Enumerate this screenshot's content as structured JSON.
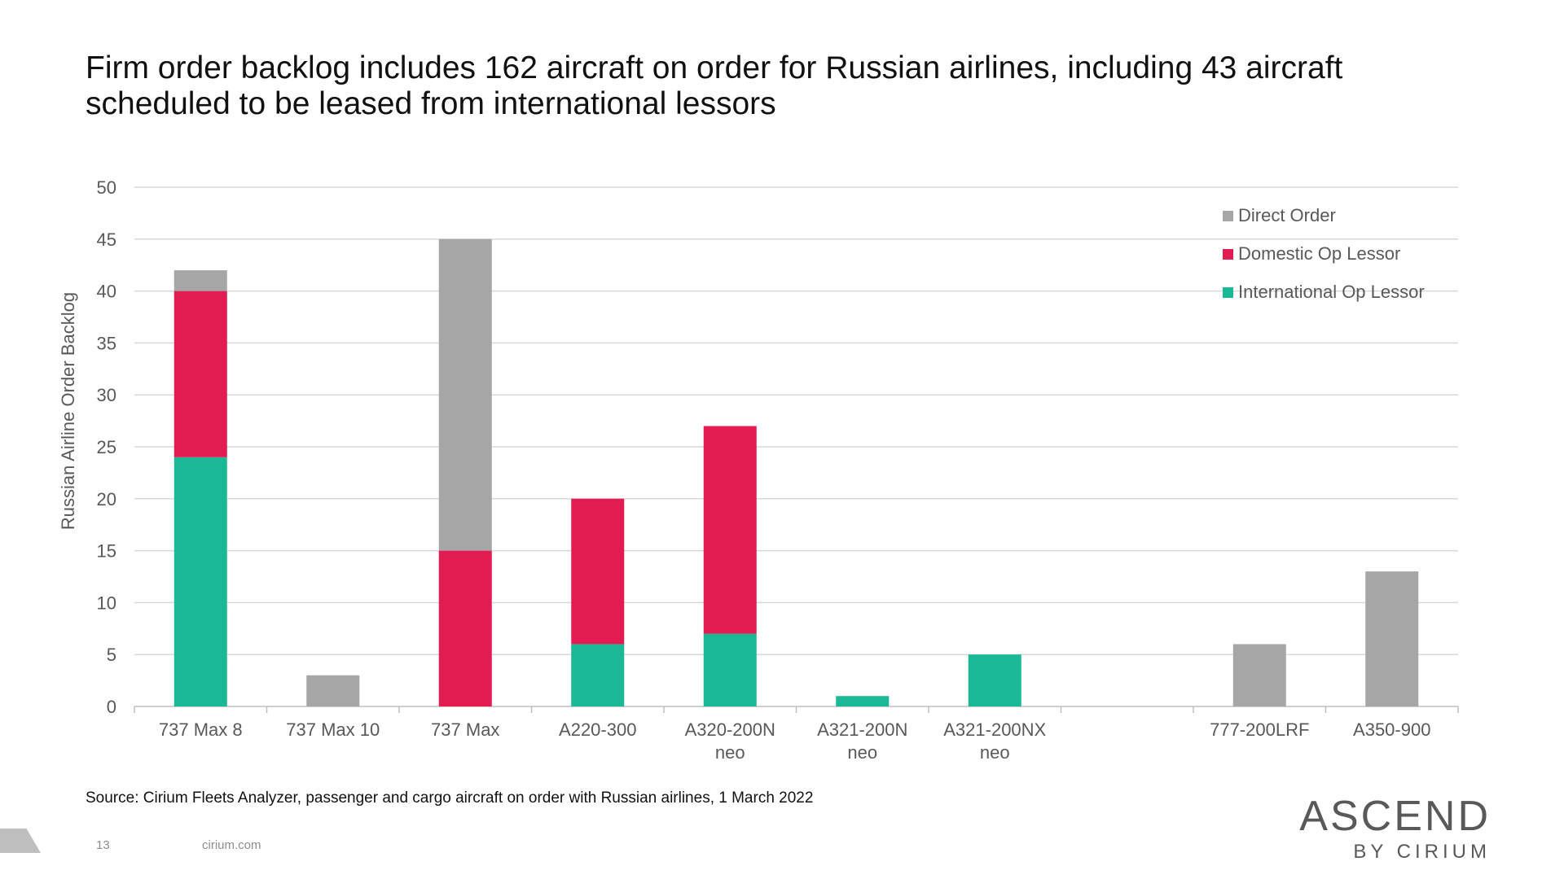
{
  "header": {
    "title_line1": "Firm order backlog includes 162 aircraft on order for Russian airlines, including 43 aircraft",
    "title_line2": "scheduled to be leased from international lessors"
  },
  "chart_data": {
    "type": "bar",
    "stacked": true,
    "title": "",
    "ylabel": "Russian Airline Order Backlog",
    "xlabel": "",
    "ylim": [
      0,
      50
    ],
    "yticks": [
      0,
      5,
      10,
      15,
      20,
      25,
      30,
      35,
      40,
      45,
      50
    ],
    "grid": true,
    "legend_position": "top-right",
    "categories": [
      [
        "737 Max 8"
      ],
      [
        "737 Max 10"
      ],
      [
        "737 Max"
      ],
      [
        "A220-300"
      ],
      [
        "A320-200N",
        "neo"
      ],
      [
        "A321-200N",
        "neo"
      ],
      [
        "A321-200NX",
        "neo"
      ],
      [
        ""
      ],
      [
        "777-200LRF"
      ],
      [
        "A350-900"
      ]
    ],
    "series": [
      {
        "name": "International Op Lessor",
        "color": "#1ab894",
        "values": [
          24,
          0,
          0,
          6,
          7,
          1,
          5,
          0,
          0,
          0
        ]
      },
      {
        "name": "Domestic Op Lessor",
        "color": "#e21b50",
        "values": [
          16,
          0,
          15,
          14,
          20,
          0,
          0,
          0,
          0,
          0
        ]
      },
      {
        "name": "Direct Order",
        "color": "#a6a6a6",
        "values": [
          2,
          3,
          30,
          0,
          0,
          0,
          0,
          0,
          6,
          13
        ]
      }
    ],
    "legend_order": [
      2,
      1,
      0
    ]
  },
  "footer": {
    "source": "Source: Cirium Fleets Analyzer, passenger and cargo aircraft on order with Russian airlines, 1 March 2022",
    "page_number": "13",
    "site": "cirium.com",
    "logo_main": "ASCEND",
    "logo_sub": "BY CIRIUM"
  }
}
